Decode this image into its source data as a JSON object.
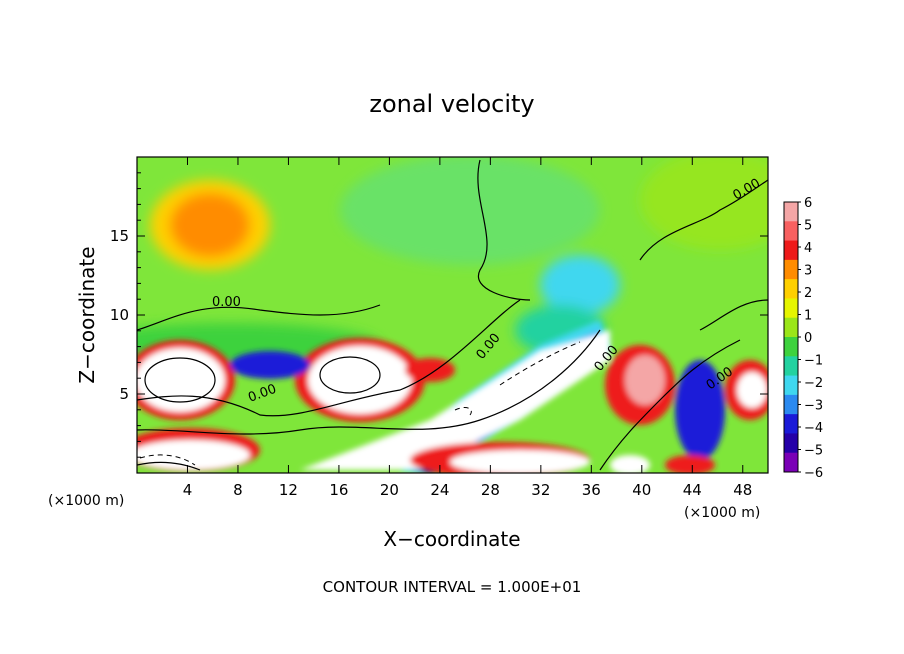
{
  "chart_data": {
    "type": "heatmap",
    "title": "zonal velocity",
    "xlabel": "X−coordinate",
    "ylabel": "Z−coordinate",
    "x_unit_left": "(×1000 m)",
    "x_unit_right": "(×1000 m)",
    "xlim": [
      0,
      50
    ],
    "ylim": [
      0,
      20
    ],
    "x_ticks": [
      4,
      8,
      12,
      16,
      20,
      24,
      28,
      32,
      36,
      40,
      44,
      48
    ],
    "y_ticks": [
      5,
      10,
      15
    ],
    "colorbar": {
      "ticks": [
        6,
        5,
        4,
        3,
        2,
        1,
        0,
        -1,
        -2,
        -3,
        -4,
        -5,
        -6
      ],
      "colors": [
        "#f4a6a6",
        "#f86060",
        "#ee1a1a",
        "#ff8c00",
        "#ffd000",
        "#e6f500",
        "#9be619",
        "#3ed23e",
        "#23d2a0",
        "#3fd7ef",
        "#2b8af0",
        "#1a1ad8",
        "#2500a8",
        "#7a00b6"
      ]
    },
    "contour_labels": [
      "0.00",
      "0.00",
      "0.00",
      "0.00",
      "0.00",
      "0.00"
    ],
    "footer": "CONTOUR INTERVAL = 1.000E+01"
  }
}
